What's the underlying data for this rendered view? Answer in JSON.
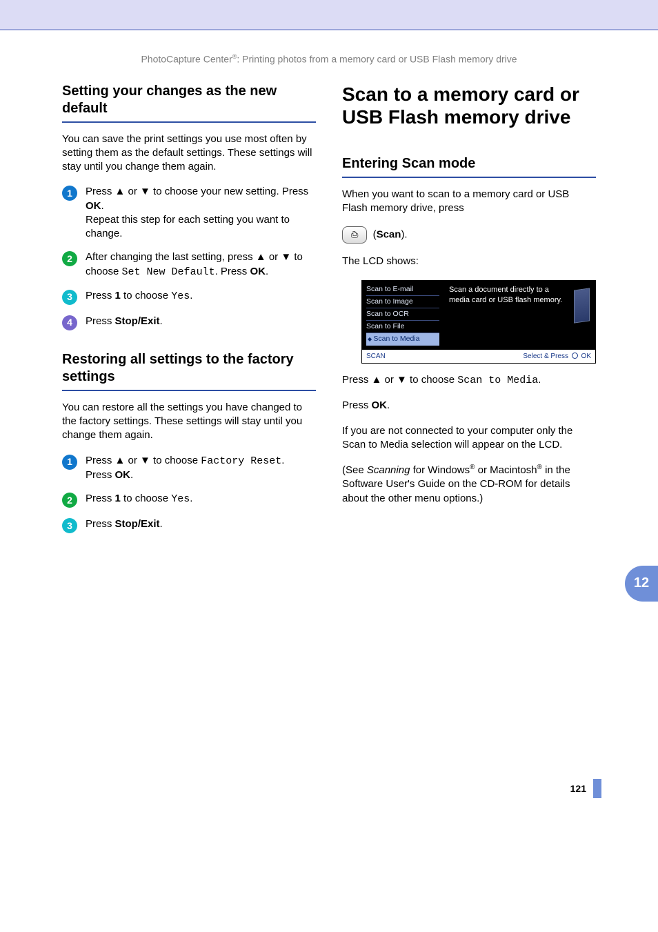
{
  "colors": {
    "header_bg": "#dcdcf5",
    "header_rule": "#9ba5da",
    "section_rule": "#2d4ea3",
    "bullet_colors": [
      "#1177cc",
      "#11aa44",
      "#11bbcc",
      "#7766cc"
    ],
    "chapter_tab_bg": "#6f8fd8",
    "footer_bar": "#6f8fd8",
    "lcd_menu_text": "#dfe6f5",
    "lcd_sel_bg": "#9fb7e6",
    "lcd_footer_text": "#1a3a8a"
  },
  "running_head": {
    "prefix": "PhotoCapture Center",
    "reg": "®",
    "suffix": ": Printing photos from a memory card or USB Flash memory drive"
  },
  "left": {
    "sec1": {
      "title": "Setting your changes as the new default",
      "intro": "You can save the print settings you use most often by setting them as the default settings. These settings will stay until you change them again.",
      "steps": [
        {
          "n": "1",
          "lines": [
            "Press ▲ or ▼ to choose your new setting. Press <b>OK</b>.",
            "Repeat this step for each setting you want to change."
          ]
        },
        {
          "n": "2",
          "lines": [
            "After changing the last setting, press ▲ or ▼ to choose <span class=\"mono\">Set New Default</span>. Press <b>OK</b>."
          ]
        },
        {
          "n": "3",
          "lines": [
            "Press <b>1</b> to choose <span class=\"mono\">Yes</span>."
          ]
        },
        {
          "n": "4",
          "lines": [
            "Press <b>Stop/Exit</b>."
          ]
        }
      ]
    },
    "sec2": {
      "title": "Restoring all settings to the factory settings",
      "intro": "You can restore all the settings you have changed to the factory settings. These settings will stay until you change them again.",
      "steps": [
        {
          "n": "1",
          "lines": [
            "Press ▲ or ▼ to choose <span class=\"mono\">Factory Reset</span>.<br>Press <b>OK</b>."
          ]
        },
        {
          "n": "2",
          "lines": [
            "Press <b>1</b> to choose <span class=\"mono\">Yes</span>."
          ]
        },
        {
          "n": "3",
          "lines": [
            "Press <b>Stop/Exit</b>."
          ]
        }
      ]
    }
  },
  "right": {
    "h1": "Scan to a memory card or USB Flash memory drive",
    "h2": "Entering Scan mode",
    "p1": "When you want to scan to a memory card or USB Flash memory drive, press",
    "scan_label": "Scan",
    "p_lcd": "The LCD shows:",
    "lcd": {
      "menu": [
        "Scan to E-mail",
        "Scan to Image",
        "Scan to OCR",
        "Scan to File",
        "Scan to Media"
      ],
      "selected_index": 4,
      "desc": "Scan a document directly to a media card or USB flash memory.",
      "footer_left": "SCAN",
      "footer_right_prefix": "Select & Press",
      "footer_right_ok": "OK"
    },
    "p_choose_pre": "Press ▲ or ▼ to choose ",
    "p_choose_mono": "Scan to Media",
    "p_ok": "Press <b>OK</b>.",
    "p_note": "If you are not connected to your computer only the Scan to Media selection will appear on the LCD.",
    "p_ref_pre": "(See ",
    "p_ref_it": "Scanning",
    "p_ref_mid": " for Windows",
    "p_ref_mid2": " or Macintosh",
    "p_ref_suf": " in the Software User's Guide on the CD-ROM for details about the other menu options.)"
  },
  "chapter": "12",
  "page_number": "121"
}
